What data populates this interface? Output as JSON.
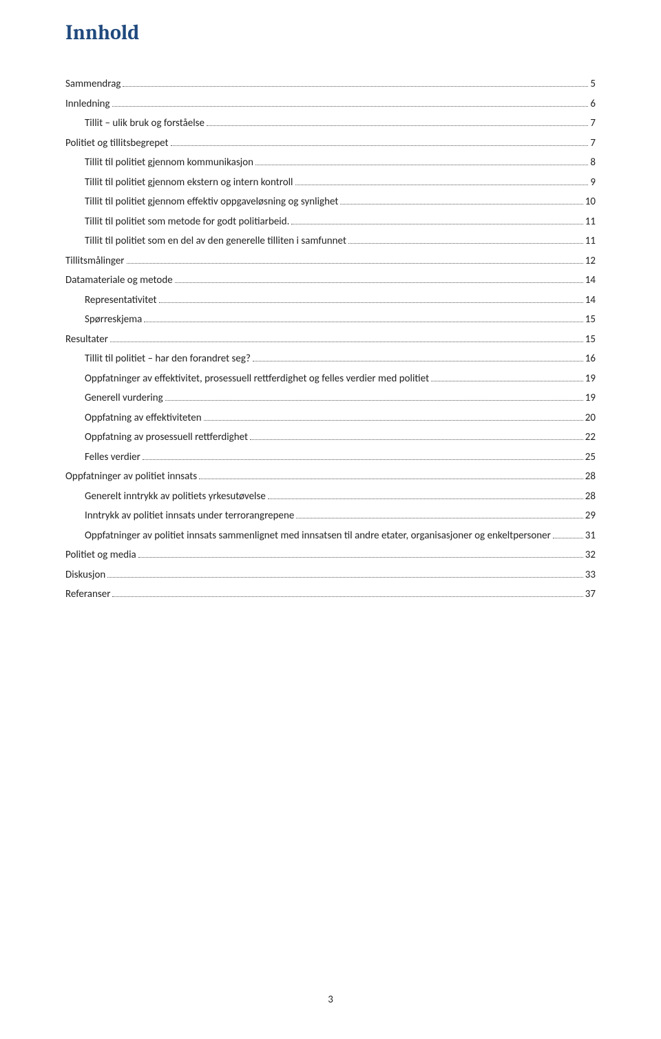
{
  "title": "Innhold",
  "pageNumber": "3",
  "colors": {
    "heading": "#1f497d",
    "text": "#222222",
    "background": "#ffffff",
    "dots": "#555555"
  },
  "typography": {
    "heading_fontsize": 30,
    "body_fontsize": 15,
    "heading_family": "Cambria",
    "body_family": "Calibri"
  },
  "toc": [
    {
      "label": "Sammendrag",
      "page": "5",
      "level": 0
    },
    {
      "label": "Innledning",
      "page": "6",
      "level": 0
    },
    {
      "label": "Tillit – ulik bruk og forståelse",
      "page": "7",
      "level": 1
    },
    {
      "label": "Politiet og tillitsbegrepet",
      "page": "7",
      "level": 0
    },
    {
      "label": "Tillit til politiet gjennom kommunikasjon",
      "page": "8",
      "level": 1
    },
    {
      "label": "Tillit til politiet gjennom ekstern og intern kontroll",
      "page": "9",
      "level": 1
    },
    {
      "label": "Tillit til politiet gjennom effektiv oppgaveløsning og synlighet",
      "page": "10",
      "level": 1
    },
    {
      "label": "Tillit til politiet som metode for godt politiarbeid.",
      "page": "11",
      "level": 1
    },
    {
      "label": "Tillit til politiet som en del av den generelle tilliten i samfunnet",
      "page": "11",
      "level": 1
    },
    {
      "label": "Tillitsmålinger",
      "page": "12",
      "level": 0
    },
    {
      "label": "Datamateriale og metode",
      "page": "14",
      "level": 0
    },
    {
      "label": "Representativitet",
      "page": "14",
      "level": 1
    },
    {
      "label": "Spørreskjema",
      "page": "15",
      "level": 1
    },
    {
      "label": "Resultater",
      "page": "15",
      "level": 0
    },
    {
      "label": "Tillit til politiet – har den forandret seg?",
      "page": "16",
      "level": 1
    },
    {
      "label": "Oppfatninger av effektivitet, prosessuell rettferdighet og felles verdier med politiet",
      "page": "19",
      "level": 1
    },
    {
      "label": "Generell vurdering",
      "page": "19",
      "level": 1
    },
    {
      "label": "Oppfatning av effektiviteten",
      "page": "20",
      "level": 1
    },
    {
      "label": "Oppfatning av prosessuell rettferdighet",
      "page": "22",
      "level": 1
    },
    {
      "label": "Felles verdier",
      "page": "25",
      "level": 1
    },
    {
      "label": "Oppfatninger av politiet innsats",
      "page": "28",
      "level": 0
    },
    {
      "label": "Generelt inntrykk av politiets yrkesutøvelse",
      "page": "28",
      "level": 1
    },
    {
      "label": "Inntrykk av politiet innsats under terrorangrepene",
      "page": "29",
      "level": 1
    },
    {
      "label": "Oppfatninger av politiet innsats sammenlignet med innsatsen til andre etater, organisasjoner og enkeltpersoner",
      "page": "31",
      "level": 1
    },
    {
      "label": "Politiet og media",
      "page": "32",
      "level": 0
    },
    {
      "label": "Diskusjon",
      "page": "33",
      "level": 0
    },
    {
      "label": "Referanser",
      "page": "37",
      "level": 0
    }
  ]
}
